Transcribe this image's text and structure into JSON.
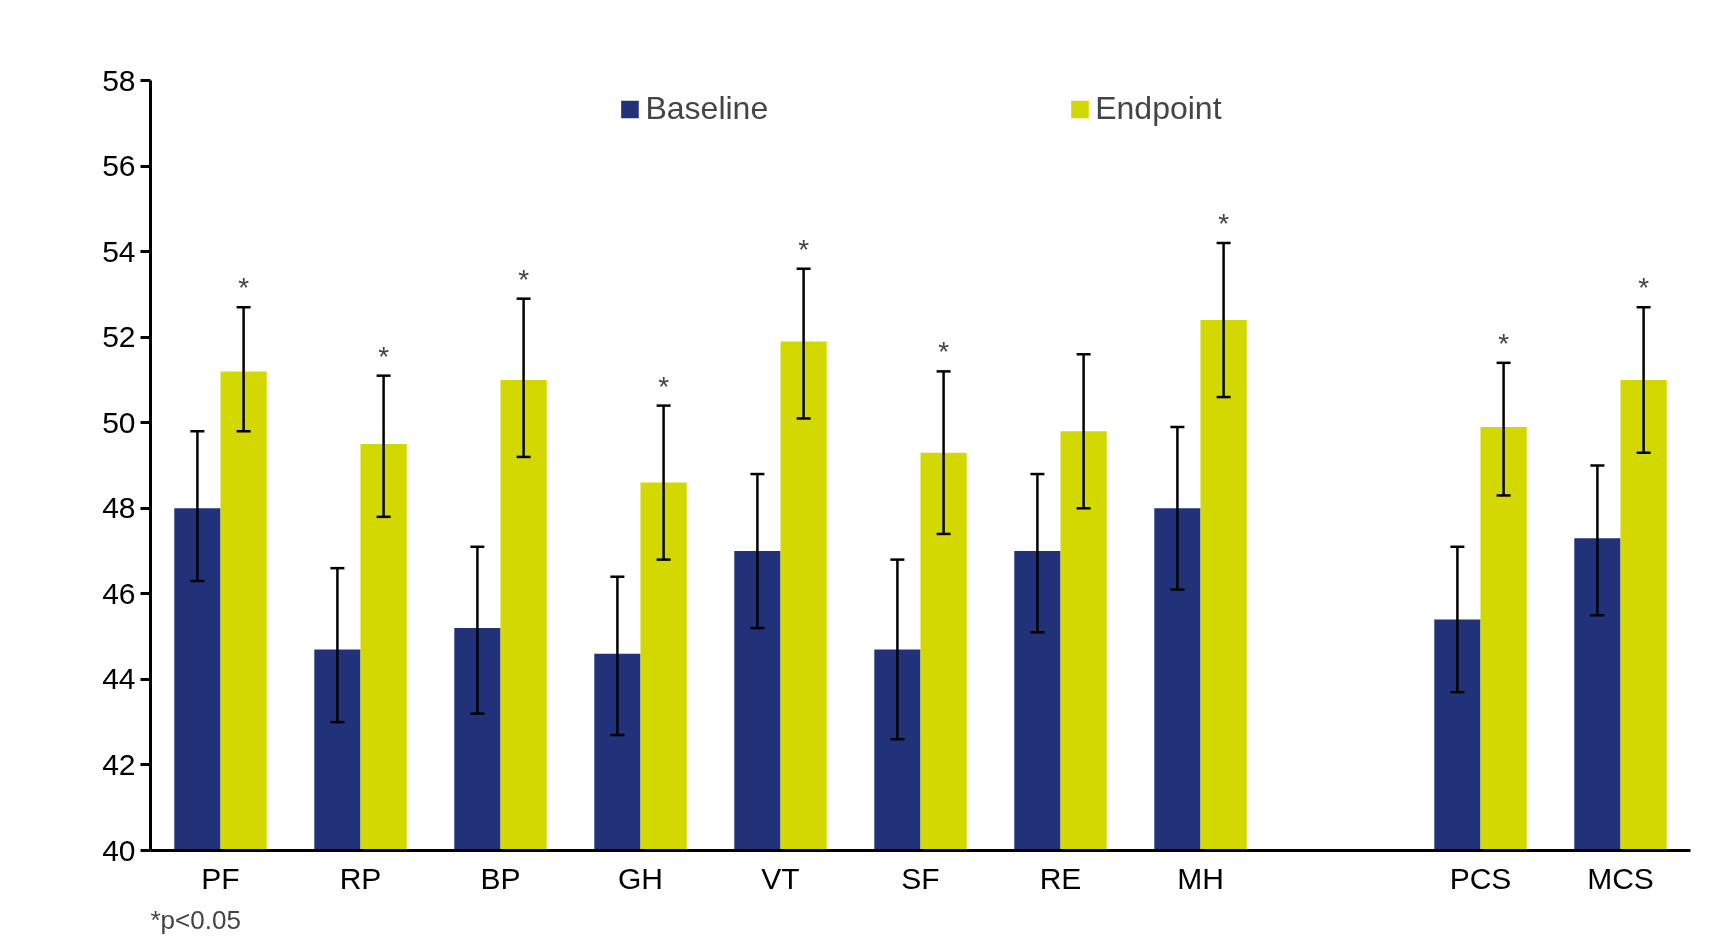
{
  "chart_data": {
    "type": "bar",
    "categories": [
      "PF",
      "RP",
      "BP",
      "GH",
      "VT",
      "SF",
      "RE",
      "MH",
      null,
      "PCS",
      "MCS"
    ],
    "series": [
      {
        "name": "Baseline",
        "color": "#21327a",
        "values": [
          48.0,
          44.7,
          45.2,
          44.6,
          47.0,
          44.7,
          47.0,
          48.0,
          null,
          45.4,
          47.3
        ],
        "errors": [
          [
            46.3,
            49.8
          ],
          [
            43.0,
            46.6
          ],
          [
            43.2,
            47.1
          ],
          [
            42.7,
            46.4
          ],
          [
            45.2,
            48.8
          ],
          [
            42.6,
            46.8
          ],
          [
            45.1,
            48.8
          ],
          [
            46.1,
            49.9
          ],
          null,
          [
            43.7,
            47.1
          ],
          [
            45.5,
            49.0
          ]
        ]
      },
      {
        "name": "Endpoint",
        "color": "#d2d800",
        "values": [
          51.2,
          49.5,
          51.0,
          48.6,
          51.9,
          49.3,
          49.8,
          52.4,
          null,
          49.9,
          51.0
        ],
        "errors": [
          [
            49.8,
            52.7
          ],
          [
            47.8,
            51.1
          ],
          [
            49.2,
            52.9
          ],
          [
            46.8,
            50.4
          ],
          [
            50.1,
            53.6
          ],
          [
            47.4,
            51.2
          ],
          [
            48.0,
            51.6
          ],
          [
            50.6,
            54.2
          ],
          null,
          [
            48.3,
            51.4
          ],
          [
            49.3,
            52.7
          ]
        ],
        "value_labels": [
          "*",
          "*",
          "*",
          "*",
          "*",
          "*",
          null,
          "*",
          null,
          "*",
          "*"
        ]
      }
    ],
    "ylim": [
      40,
      58
    ],
    "yticks": [
      40,
      42,
      44,
      46,
      48,
      50,
      52,
      54,
      56,
      58
    ],
    "grid": false,
    "legend": "top",
    "annotations": [
      "*p<0.05"
    ]
  }
}
